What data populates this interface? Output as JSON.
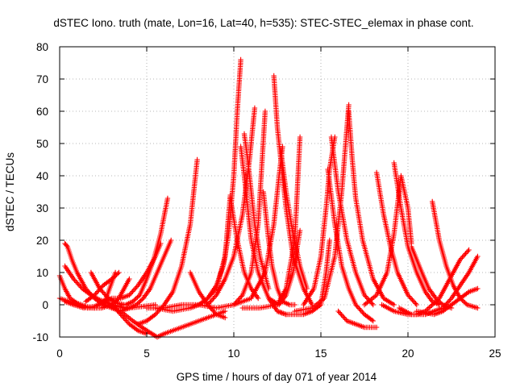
{
  "chart_data": {
    "type": "scatter",
    "title": "dSTEC Iono. truth (mate, Lon=16, Lat=40, h=535): STEC-STEC_elemax in phase cont.",
    "xlabel": "GPS time / hours of day 071 of year 2014",
    "ylabel": "dSTEC  / TECUs",
    "xlim": [
      0,
      25
    ],
    "ylim": [
      -10,
      80
    ],
    "x_ticks": [
      "0",
      "5",
      "10",
      "15",
      "20",
      "25"
    ],
    "y_ticks": [
      "-10",
      "0",
      "10",
      "20",
      "30",
      "40",
      "50",
      "60",
      "70",
      "80"
    ],
    "grid": true,
    "marker": "+",
    "color": "#ff0000",
    "passes": [
      {
        "x": [
          0.0,
          0.3,
          0.6,
          1.0,
          1.5,
          2.0
        ],
        "y": [
          9,
          5,
          2,
          0.5,
          -0.5,
          -1
        ]
      },
      {
        "x": [
          0.3,
          0.45,
          0.7,
          1.0,
          1.5,
          2.0,
          2.5,
          3.0,
          3.5,
          4.0
        ],
        "y": [
          19,
          18,
          14,
          10,
          5,
          2,
          0,
          -1,
          -1,
          -1
        ]
      },
      {
        "x": [
          0.3,
          0.8,
          1.3,
          1.8,
          2.3,
          2.8,
          3.3,
          4.0,
          4.8,
          5.5
        ],
        "y": [
          12,
          8,
          5,
          3,
          1.5,
          0.5,
          -0.5,
          -1,
          -0.5,
          0
        ]
      },
      {
        "x": [
          1.8,
          2.3,
          2.8,
          3.3,
          3.7
        ],
        "y": [
          10,
          5,
          2,
          0.5,
          0
        ]
      },
      {
        "x": [
          0.3,
          0.8,
          1.4,
          2.0,
          2.6,
          3.2
        ],
        "y": [
          1,
          0,
          -1,
          -0.5,
          1,
          10
        ]
      },
      {
        "x": [
          0.0,
          0.8,
          1.6,
          2.4,
          3.0,
          3.4,
          4.0
        ],
        "y": [
          2,
          0.5,
          -1,
          -1,
          0,
          2,
          8
        ]
      },
      {
        "x": [
          1.5,
          2.0,
          2.5,
          3.0,
          3.4
        ],
        "y": [
          1,
          3,
          6,
          8,
          10
        ]
      },
      {
        "x": [
          3.0,
          3.5,
          4.0,
          4.4,
          4.8,
          5.2,
          5.6,
          6.0,
          6.4
        ],
        "y": [
          -1,
          -2,
          -1,
          0,
          2,
          5,
          10,
          15,
          20
        ]
      },
      {
        "x": [
          2.5,
          3.0,
          3.5,
          4.0,
          4.5,
          5.0,
          5.5,
          5.8
        ],
        "y": [
          1,
          2,
          2,
          3,
          6,
          10,
          15,
          19
        ]
      },
      {
        "x": [
          3.0,
          3.5,
          4.0,
          4.5,
          5.0
        ],
        "y": [
          0,
          -3,
          -6,
          -8,
          -9
        ]
      },
      {
        "x": [
          3.5,
          4.2,
          5.0,
          5.3,
          5.6,
          6.0,
          7.0,
          8.0,
          9.0,
          9.5
        ],
        "y": [
          -2,
          -5,
          -8,
          -9,
          -10,
          -9,
          -7,
          -5,
          -3,
          -2
        ]
      },
      {
        "x": [
          3.8,
          4.2,
          4.6,
          5.0,
          5.4,
          5.8,
          6.2
        ],
        "y": [
          0,
          1,
          3,
          8,
          14,
          22,
          33
        ]
      },
      {
        "x": [
          4.5,
          5.0,
          5.5,
          6.0,
          6.5,
          7.0,
          7.5,
          7.9
        ],
        "y": [
          -6,
          -5,
          -3,
          0,
          4,
          12,
          25,
          45
        ]
      },
      {
        "x": [
          7.5,
          8.0,
          8.5,
          9.0,
          9.5
        ],
        "y": [
          10,
          4,
          0,
          -3,
          -4
        ]
      },
      {
        "x": [
          5.5,
          6.5,
          7.5,
          8.0,
          8.5,
          9.0,
          9.4,
          9.7,
          10.0,
          10.2,
          10.4
        ],
        "y": [
          -1,
          -2,
          -1,
          0,
          2,
          6,
          12,
          22,
          40,
          60,
          76
        ]
      },
      {
        "x": [
          5.0,
          6.0,
          7.0,
          8.0,
          8.5,
          9.0,
          9.5,
          9.8
        ],
        "y": [
          -1,
          -1,
          0,
          0,
          2,
          5,
          15,
          34
        ]
      },
      {
        "x": [
          9.8,
          10.2,
          10.6,
          11.0,
          11.4
        ],
        "y": [
          33,
          20,
          10,
          5,
          2
        ]
      },
      {
        "x": [
          8.5,
          9.0,
          9.5,
          10.0,
          10.5,
          10.9,
          11.2
        ],
        "y": [
          0,
          3,
          8,
          15,
          28,
          45,
          61
        ]
      },
      {
        "x": [
          10.4,
          10.6,
          10.8,
          11.0,
          11.4,
          12.0,
          12.5,
          13.0
        ],
        "y": [
          49,
          40,
          30,
          20,
          10,
          2,
          -2,
          -3
        ]
      },
      {
        "x": [
          10.6,
          10.8,
          11.0,
          11.2,
          11.5,
          12.0
        ],
        "y": [
          53,
          45,
          35,
          25,
          15,
          5
        ]
      },
      {
        "x": [
          8.0,
          9.0,
          10.0,
          10.5,
          11.0,
          11.4,
          11.8
        ],
        "y": [
          0,
          -1,
          0,
          3,
          10,
          25,
          60
        ]
      },
      {
        "x": [
          11.7,
          12.0,
          12.2,
          12.5,
          12.8,
          13.2,
          13.5
        ],
        "y": [
          35,
          20,
          12,
          5,
          1,
          0,
          0
        ]
      },
      {
        "x": [
          10.5,
          11.5,
          12.5,
          13.0,
          13.5,
          13.8
        ],
        "y": [
          -1,
          -1,
          0,
          5,
          20,
          52
        ]
      },
      {
        "x": [
          12.3,
          12.5,
          12.8,
          13.0,
          13.4,
          14.0,
          14.5
        ],
        "y": [
          71,
          55,
          40,
          30,
          15,
          5,
          0
        ]
      },
      {
        "x": [
          10.0,
          11.0,
          11.8,
          12.3,
          12.6,
          12.8
        ],
        "y": [
          0,
          2,
          10,
          25,
          40,
          49
        ]
      },
      {
        "x": [
          12.7,
          13.0,
          13.4,
          13.8,
          14.2
        ],
        "y": [
          48,
          35,
          22,
          12,
          5
        ]
      },
      {
        "x": [
          12.0,
          12.6,
          13.0,
          13.4,
          13.8
        ],
        "y": [
          2,
          0,
          3,
          10,
          23
        ]
      },
      {
        "x": [
          12.5,
          13.0,
          14.0,
          14.5,
          15.0,
          15.3,
          15.5
        ],
        "y": [
          -2,
          -3,
          -3,
          -2,
          0,
          10,
          20
        ]
      },
      {
        "x": [
          14.0,
          14.6,
          15.0,
          15.3,
          15.5,
          15.8
        ],
        "y": [
          0,
          5,
          15,
          30,
          42,
          52
        ]
      },
      {
        "x": [
          15.6,
          16.0,
          16.5,
          17.0,
          17.5,
          18.0
        ],
        "y": [
          52,
          35,
          20,
          10,
          3,
          0
        ]
      },
      {
        "x": [
          15.4,
          15.8,
          16.2,
          16.6,
          17.0,
          17.5,
          18.0
        ],
        "y": [
          42,
          25,
          12,
          5,
          0,
          -3,
          -5
        ]
      },
      {
        "x": [
          13.5,
          14.5,
          15.2,
          15.8,
          16.2,
          16.6
        ],
        "y": [
          -2,
          -1,
          2,
          15,
          35,
          62
        ]
      },
      {
        "x": [
          16.6,
          16.8,
          17.0,
          17.4,
          18.0,
          18.6,
          19.2
        ],
        "y": [
          60,
          45,
          33,
          20,
          8,
          2,
          0
        ]
      },
      {
        "x": [
          16.0,
          16.5,
          17.0,
          17.5,
          18.0,
          18.2
        ],
        "y": [
          -2,
          -5,
          -6,
          -7,
          -7,
          -7
        ]
      },
      {
        "x": [
          18.2,
          18.6,
          19.0,
          19.4,
          20.0,
          20.5
        ],
        "y": [
          41,
          28,
          18,
          10,
          3,
          0
        ]
      },
      {
        "x": [
          17.5,
          18.2,
          18.8,
          19.2,
          19.6,
          20.0,
          20.2
        ],
        "y": [
          0,
          3,
          10,
          22,
          40,
          30,
          19
        ]
      },
      {
        "x": [
          19.2,
          19.6,
          20.0,
          20.5,
          21.0,
          21.4,
          21.8
        ],
        "y": [
          44,
          30,
          18,
          10,
          4,
          1,
          0
        ]
      },
      {
        "x": [
          20.2,
          20.8,
          21.2,
          21.6,
          22.0,
          22.5
        ],
        "y": [
          18,
          10,
          5,
          2,
          0,
          -1
        ]
      },
      {
        "x": [
          21.4,
          21.8,
          22.2,
          22.6,
          23.0,
          23.4,
          24.0
        ],
        "y": [
          32,
          20,
          12,
          6,
          2,
          0,
          -1
        ]
      },
      {
        "x": [
          18.5,
          19.2,
          20.0,
          20.5,
          21.0,
          21.8,
          22.4,
          23.0,
          23.5
        ],
        "y": [
          0,
          -2,
          -3,
          -3,
          -2,
          2,
          8,
          14,
          17
        ]
      },
      {
        "x": [
          19.5,
          20.2,
          21.0,
          21.5,
          22.0,
          22.5,
          23.0,
          23.5,
          24.0
        ],
        "y": [
          -1,
          -3,
          -3,
          -2,
          -1,
          2,
          6,
          10,
          15
        ]
      },
      {
        "x": [
          20.5,
          21.5,
          22.0,
          22.5,
          23.0,
          23.5,
          24.0
        ],
        "y": [
          -2,
          -3,
          -2,
          0,
          2,
          4,
          5
        ]
      }
    ]
  }
}
